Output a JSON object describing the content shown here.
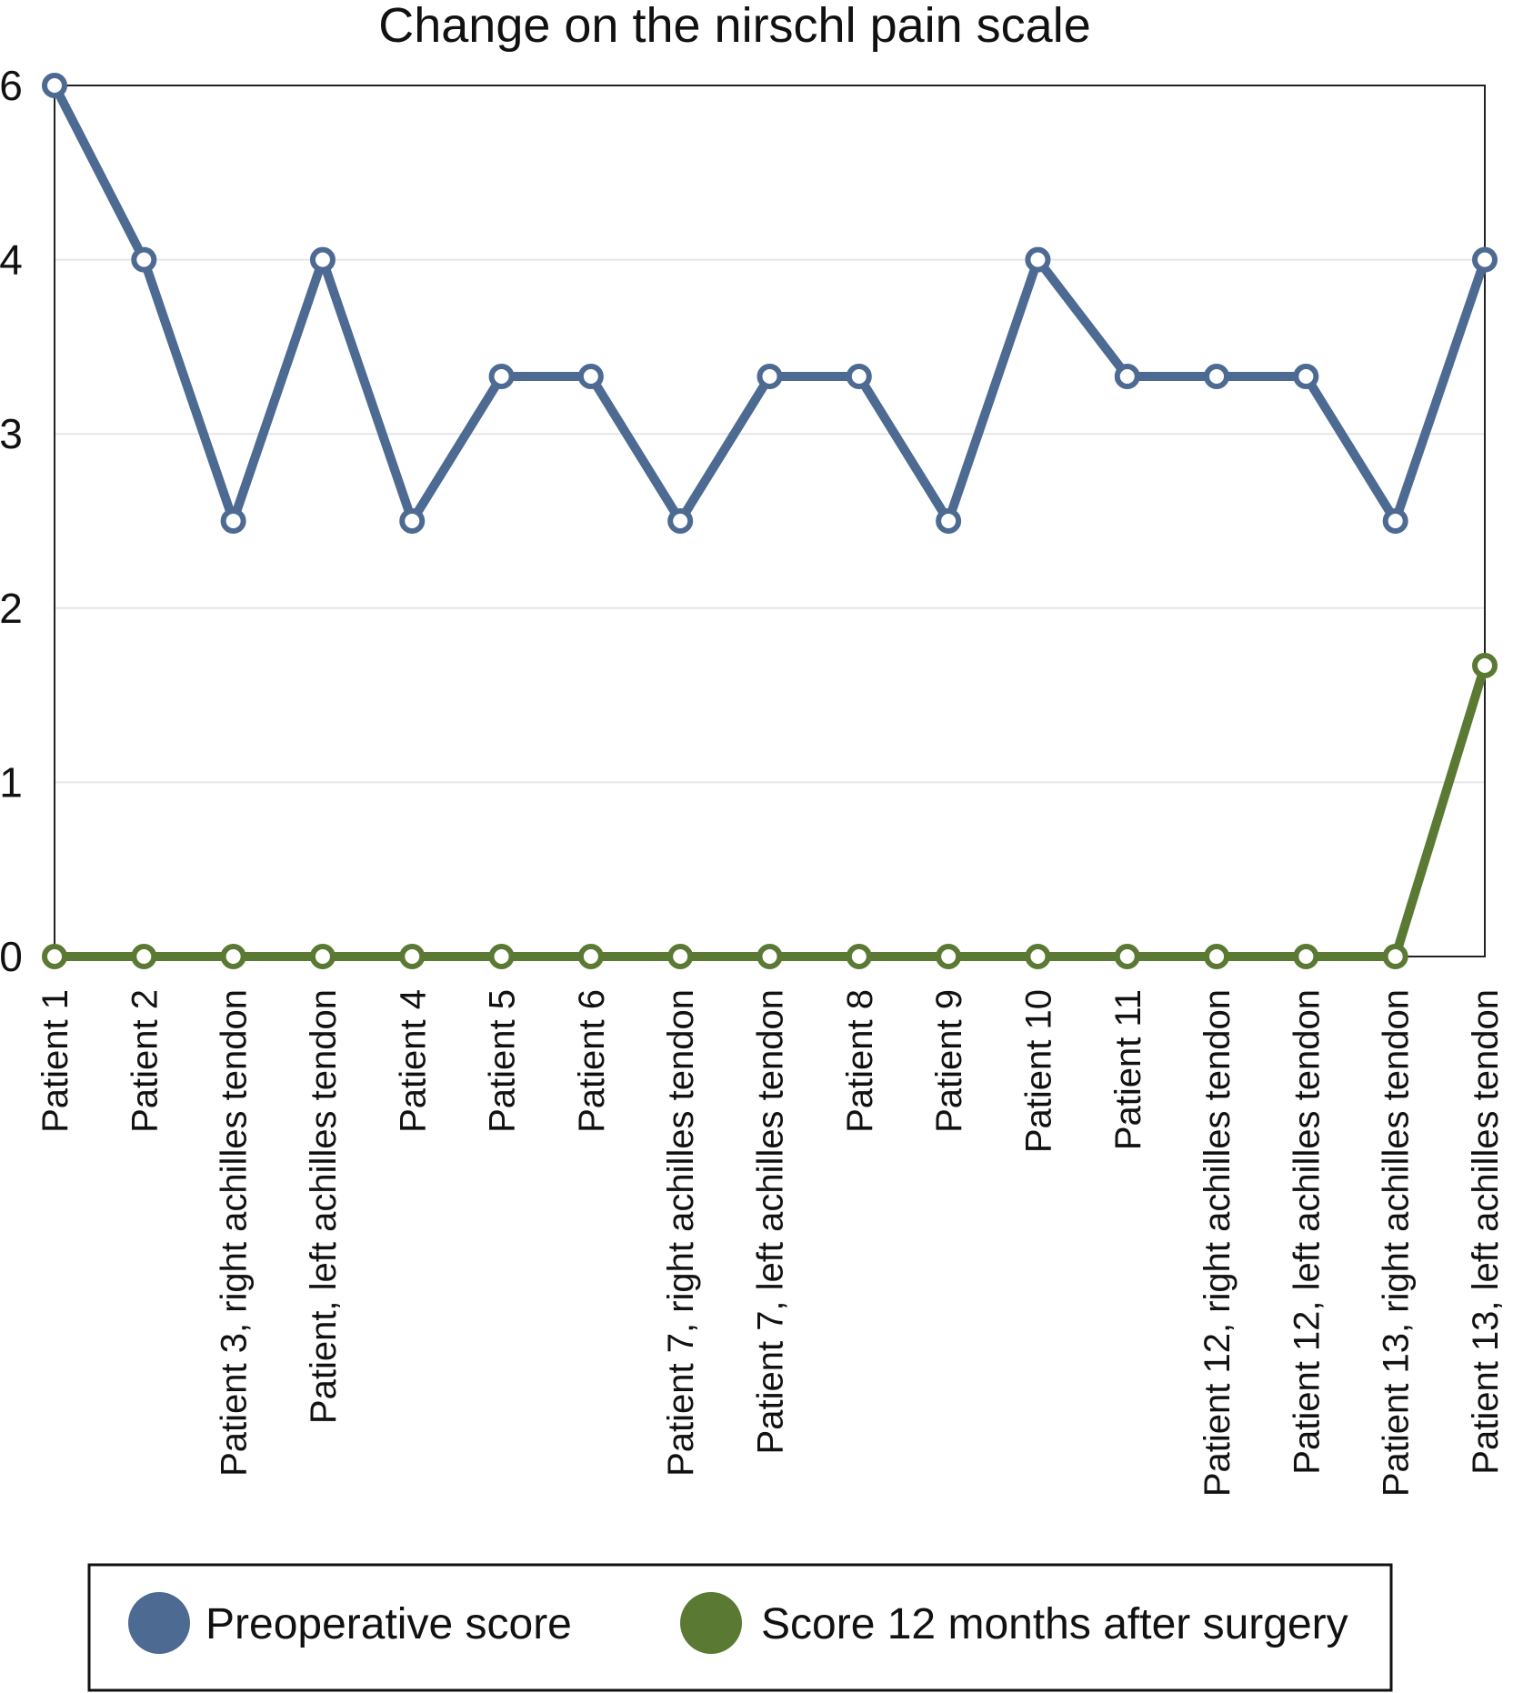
{
  "chart_data": {
    "type": "line",
    "title": "Change on the nirschl pain scale",
    "xlabel": "",
    "ylabel": "",
    "categories": [
      "Patient 1",
      "Patient 2",
      "Patient 3, right achilles tendon",
      "Patient,  left achilles tendon",
      "Patient 4",
      "Patient 5",
      "Patient 6",
      "Patient 7, right achilles tendon",
      "Patient 7, left achilles tendon",
      "Patient 8",
      "Patient 9",
      "Patient 10",
      "Patient 11",
      "Patient 12, right achilles tendon",
      "Patient 12, left achilles tendon",
      "Patient 13, right achilles tendon",
      "Patient 13, left achilles tendon"
    ],
    "yticks": [
      "0",
      "1",
      "2",
      "3",
      "4",
      "6"
    ],
    "ylim": [
      0,
      5
    ],
    "grid": true,
    "legend_position": "bottom",
    "series": [
      {
        "name": "Preoperative score",
        "color": "#4c6a92",
        "values": [
          6,
          4,
          2.5,
          4,
          2.5,
          3.33,
          3.33,
          2.5,
          3.33,
          3.33,
          2.5,
          4,
          3.33,
          3.33,
          3.33,
          2.5,
          4
        ]
      },
      {
        "name": "Score 12 months after surgery",
        "color": "#5a7a33",
        "values": [
          0,
          0,
          0,
          0,
          0,
          0,
          0,
          0,
          0,
          0,
          0,
          0,
          0,
          0,
          0,
          0,
          1.67
        ]
      }
    ]
  }
}
